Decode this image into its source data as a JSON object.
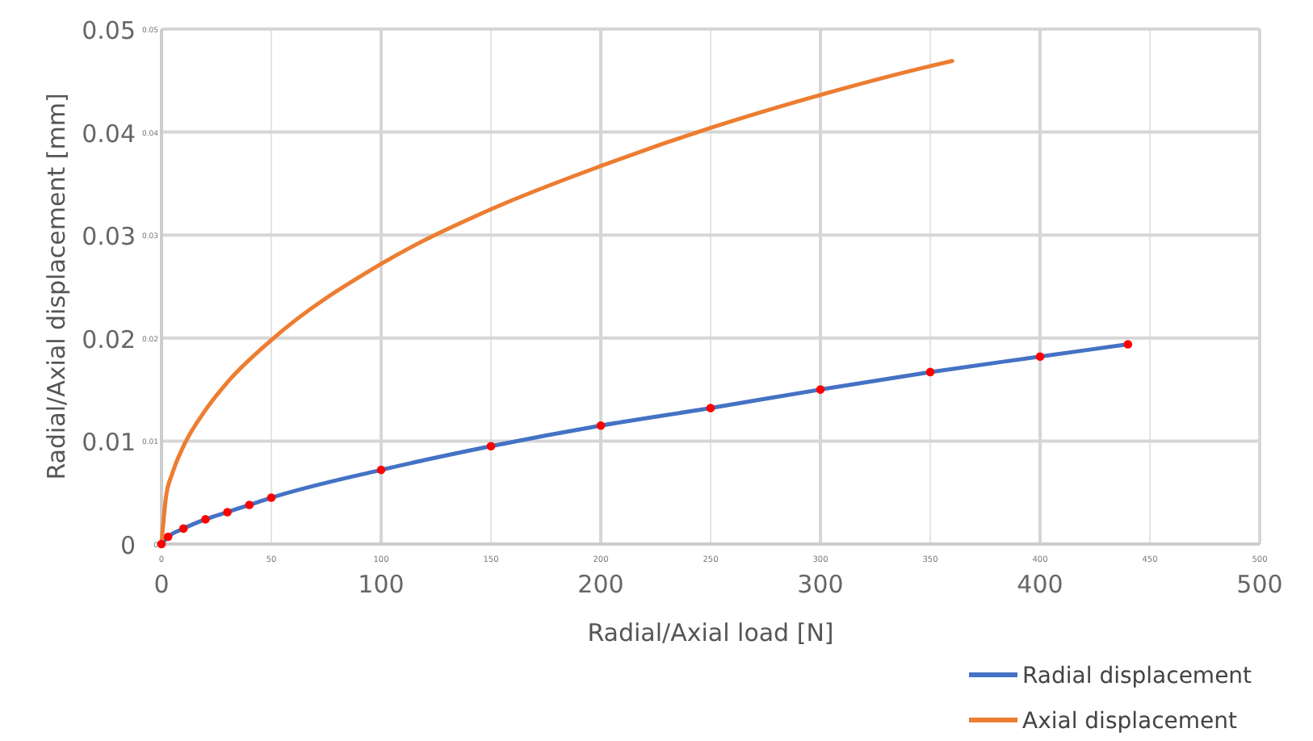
{
  "chart_data": {
    "type": "line",
    "xlabel": "Radial/Axial load [N]",
    "ylabel": "Radial/Axial displacement [mm]",
    "xlim": [
      0,
      500
    ],
    "xticks": [
      0,
      100,
      200,
      300,
      400,
      500
    ],
    "ylim": [
      0,
      0.05
    ],
    "yticks": [
      0,
      0.01,
      0.02,
      0.03,
      0.04,
      0.05
    ],
    "x2lim": [
      0,
      500
    ],
    "x2ticks": [
      0,
      50,
      100,
      150,
      200,
      250,
      300,
      350,
      400,
      450,
      500
    ],
    "y2lim": [
      0,
      0.05
    ],
    "y2ticks": [
      0,
      0.01,
      0.02,
      0.03,
      0.04,
      0.05
    ],
    "grid": true,
    "legend": "bottom right",
    "marker": "none",
    "line_style": "solid",
    "series": [
      {
        "name": "Radial displacement",
        "color": "#4472c4",
        "x": [
          0,
          3,
          10,
          20,
          30,
          40,
          50,
          100,
          150,
          200,
          250,
          300,
          350,
          400,
          440
        ],
        "values": [
          0,
          0.0007,
          0.0015,
          0.0024,
          0.0031,
          0.0038,
          0.0045,
          0.0072,
          0.0095,
          0.0115,
          0.0132,
          0.015,
          0.0167,
          0.0182,
          0.0194
        ]
      },
      {
        "name": "Axial displacement",
        "color": "#ed7d31",
        "x": [
          0,
          2,
          5,
          10,
          20,
          30,
          50,
          100,
          150,
          200,
          250,
          300,
          350,
          360
        ],
        "values": [
          0,
          0.0045,
          0.0069,
          0.0095,
          0.013,
          0.0157,
          0.0198,
          0.0272,
          0.0325,
          0.0367,
          0.0404,
          0.0436,
          0.0464,
          0.0469
        ]
      },
      {
        "type": "scatter",
        "marker": "circle",
        "color": "#ff0000",
        "x": [
          0,
          3,
          10,
          20,
          30,
          40,
          50,
          100,
          150,
          200,
          250,
          300,
          350,
          400,
          440
        ],
        "values": [
          0,
          0.0007,
          0.0015,
          0.0024,
          0.0031,
          0.0038,
          0.0045,
          0.0072,
          0.0095,
          0.0115,
          0.0132,
          0.015,
          0.0167,
          0.0182,
          0.0194
        ]
      }
    ]
  }
}
